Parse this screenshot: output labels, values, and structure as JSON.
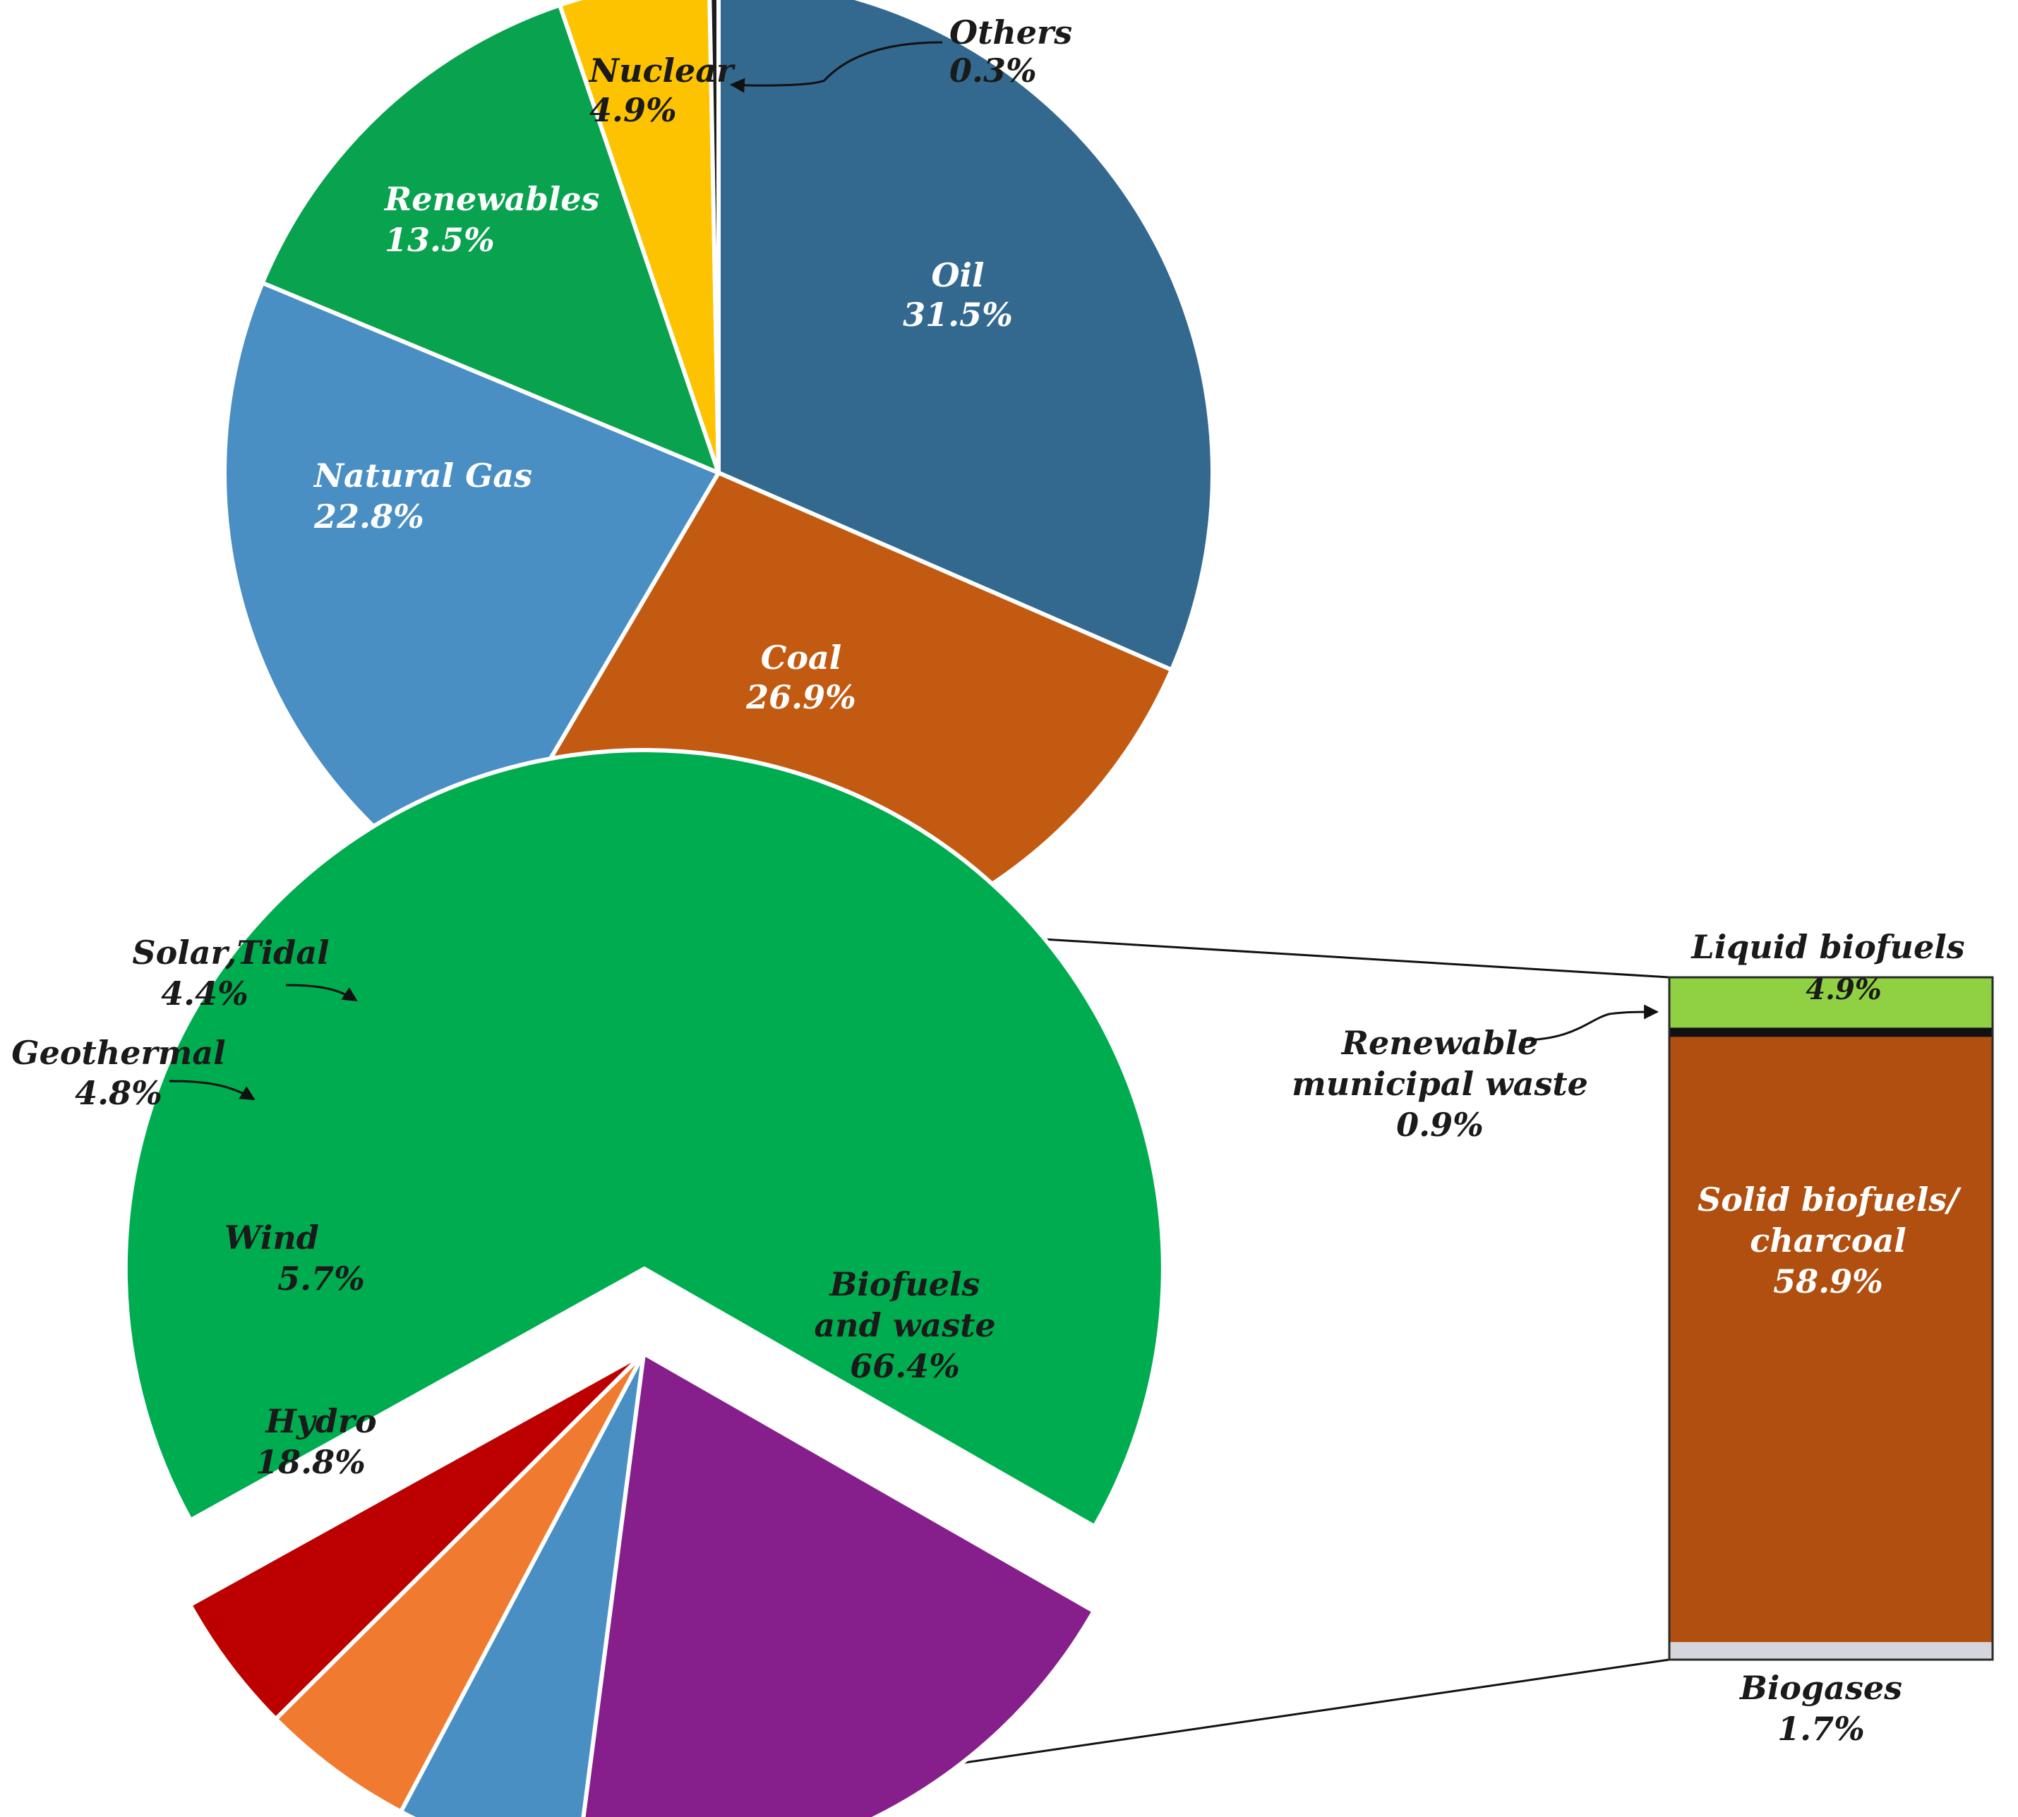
{
  "chart_data": [
    {
      "type": "pie",
      "title": "",
      "slices": [
        {
          "label": "Oil",
          "value": 31.5,
          "value_label": "31.5%",
          "color": "#33698f"
        },
        {
          "label": "Coal",
          "value": 26.9,
          "value_label": "26.9%",
          "color": "#c25a12"
        },
        {
          "label": "Natural Gas",
          "value": 22.8,
          "value_label": "22.8%",
          "color": "#4a8fc3"
        },
        {
          "label": "Renewables",
          "value": 13.5,
          "value_label": "13.5%",
          "color": "#09a24e"
        },
        {
          "label": "Nuclear",
          "value": 4.9,
          "value_label": "4.9%",
          "color": "#fdc300"
        },
        {
          "label": "Others",
          "value": 0.3,
          "value_label": "0.3%",
          "color": "#1c1c1c"
        }
      ]
    },
    {
      "type": "pie",
      "title": "",
      "slices": [
        {
          "label": "Biofuels and waste",
          "label_lines": [
            "Biofuels",
            "and waste"
          ],
          "value": 66.4,
          "value_label": "66.4%",
          "color": "#00ac50"
        },
        {
          "label": "Hydro",
          "value": 18.8,
          "value_label": "18.8%",
          "color": "#861f8c"
        },
        {
          "label": "Wind",
          "value": 5.7,
          "value_label": "5.7%",
          "color": "#4a8fc3"
        },
        {
          "label": "Geothermal",
          "value": 4.8,
          "value_label": "4.8%",
          "color": "#ef7a30"
        },
        {
          "label": "Solar,Tidal",
          "value": 4.4,
          "value_label": "4.4%",
          "color": "#bc0000"
        }
      ]
    },
    {
      "type": "stacked-bar",
      "title": "",
      "segments": [
        {
          "label": "Liquid biofuels",
          "value": 4.9,
          "value_label": "4.9%",
          "color": "#90d143"
        },
        {
          "label": "Renewable municipal waste",
          "label_lines": [
            "Renewable",
            "municipal waste"
          ],
          "value": 0.9,
          "value_label": "0.9%",
          "color": "#111111"
        },
        {
          "label": "Solid biofuels/ charcoal",
          "label_lines": [
            "Solid biofuels/",
            "charcoal"
          ],
          "value": 58.9,
          "value_label": "58.9%",
          "color": "#b04f10"
        },
        {
          "label": "Biogases",
          "value": 1.7,
          "value_label": "1.7%",
          "color": "#d4d6dc"
        }
      ]
    }
  ]
}
